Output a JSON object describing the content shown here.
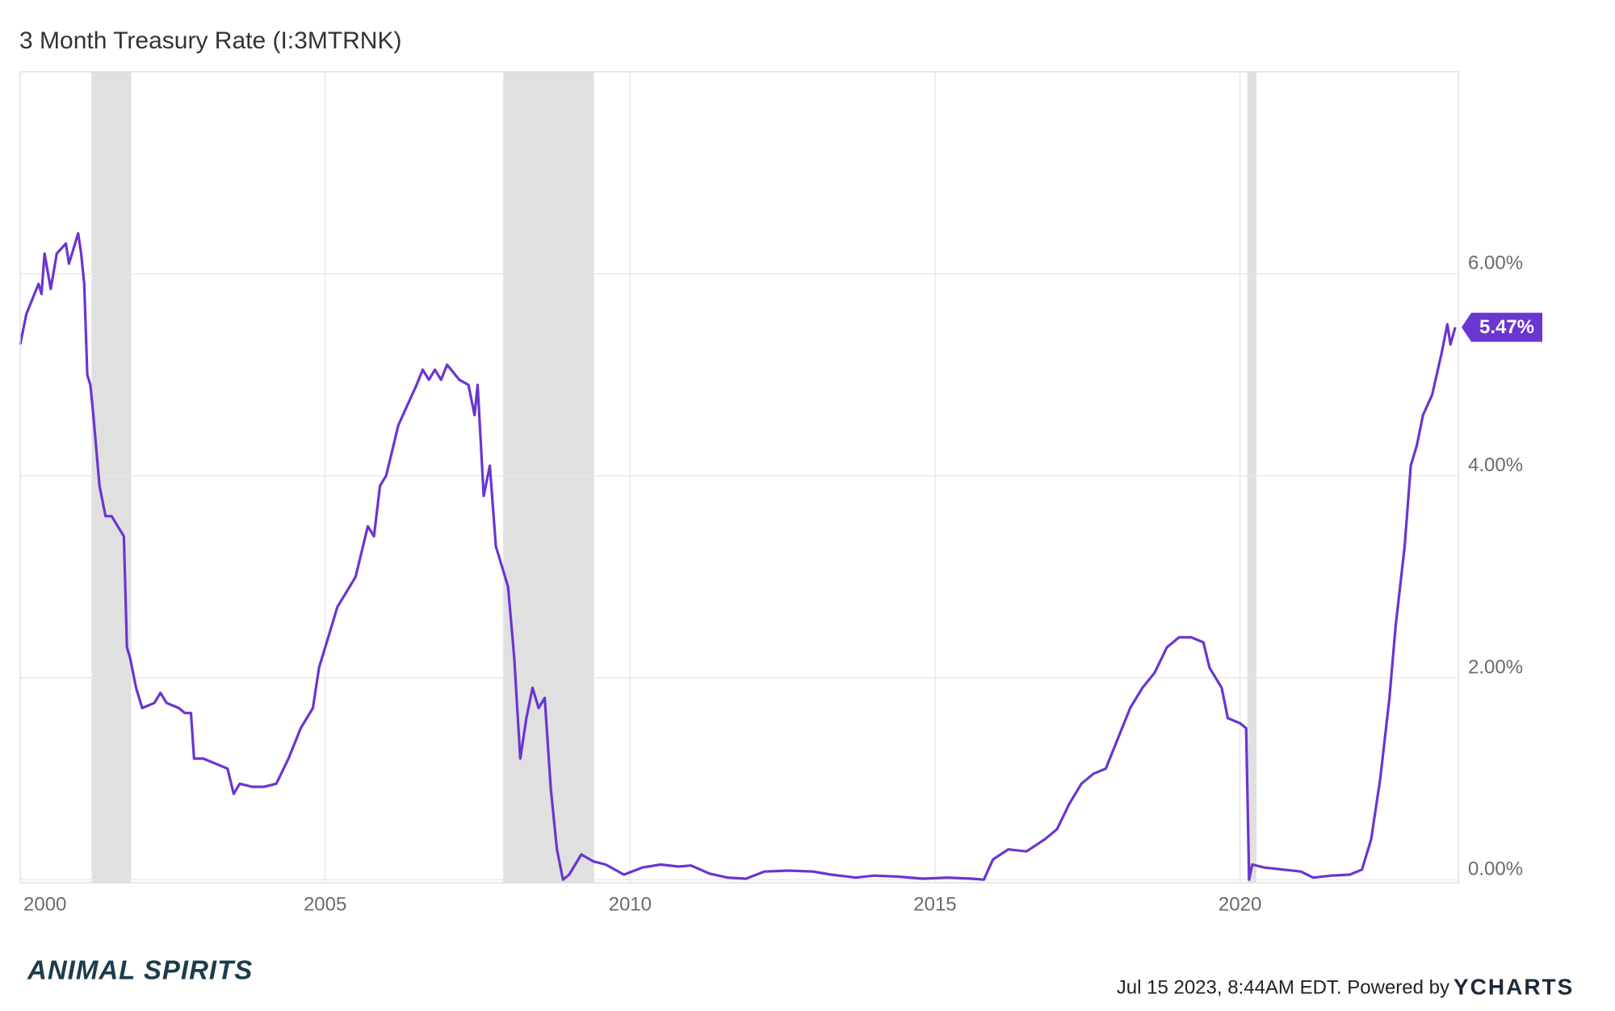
{
  "chart_data": {
    "type": "line",
    "title": "3 Month Treasury Rate (I:3MTRNK)",
    "x": [
      2000.0,
      2000.1,
      2000.3,
      2000.35,
      2000.4,
      2000.5,
      2000.6,
      2000.75,
      2000.8,
      2000.9,
      2000.95,
      2001.0,
      2001.05,
      2001.1,
      2001.15,
      2001.2,
      2001.3,
      2001.4,
      2001.5,
      2001.6,
      2001.7,
      2001.75,
      2001.8,
      2001.9,
      2002.0,
      2002.2,
      2002.3,
      2002.4,
      2002.6,
      2002.7,
      2002.8,
      2002.85,
      2003.0,
      2003.2,
      2003.4,
      2003.5,
      2003.6,
      2003.8,
      2004.0,
      2004.2,
      2004.4,
      2004.6,
      2004.8,
      2004.9,
      2005.0,
      2005.2,
      2005.4,
      2005.5,
      2005.7,
      2005.8,
      2005.9,
      2006.0,
      2006.2,
      2006.35,
      2006.5,
      2006.6,
      2006.7,
      2006.8,
      2006.9,
      2007.0,
      2007.2,
      2007.35,
      2007.45,
      2007.5,
      2007.6,
      2007.7,
      2007.8,
      2007.9,
      2008.0,
      2008.1,
      2008.2,
      2008.3,
      2008.4,
      2008.5,
      2008.6,
      2008.7,
      2008.8,
      2008.9,
      2009.0,
      2009.2,
      2009.4,
      2009.6,
      2009.9,
      2010.2,
      2010.5,
      2010.8,
      2011.0,
      2011.3,
      2011.6,
      2011.9,
      2012.2,
      2012.6,
      2013.0,
      2013.3,
      2013.7,
      2014.0,
      2014.4,
      2014.8,
      2015.2,
      2015.6,
      2015.8,
      2015.95,
      2016.2,
      2016.5,
      2016.8,
      2017.0,
      2017.2,
      2017.4,
      2017.6,
      2017.8,
      2018.0,
      2018.2,
      2018.4,
      2018.6,
      2018.8,
      2019.0,
      2019.2,
      2019.4,
      2019.5,
      2019.7,
      2019.8,
      2020.0,
      2020.1,
      2020.15,
      2020.2,
      2020.4,
      2020.7,
      2021.0,
      2021.2,
      2021.5,
      2021.8,
      2022.0,
      2022.15,
      2022.3,
      2022.45,
      2022.55,
      2022.7,
      2022.8,
      2022.9,
      2023.0,
      2023.15,
      2023.3,
      2023.4,
      2023.45,
      2023.53
    ],
    "series": [
      {
        "name": "3 Month Treasury Rate",
        "color": "#6a35d0",
        "values": [
          5.3,
          5.6,
          5.9,
          5.8,
          6.2,
          5.85,
          6.2,
          6.3,
          6.1,
          6.3,
          6.4,
          6.2,
          5.9,
          5.0,
          4.9,
          4.6,
          3.9,
          3.6,
          3.6,
          3.5,
          3.4,
          2.3,
          2.2,
          1.9,
          1.7,
          1.75,
          1.85,
          1.75,
          1.7,
          1.65,
          1.65,
          1.2,
          1.2,
          1.15,
          1.1,
          0.85,
          0.95,
          0.92,
          0.92,
          0.95,
          1.2,
          1.5,
          1.7,
          2.1,
          2.3,
          2.7,
          2.9,
          3.0,
          3.5,
          3.4,
          3.9,
          4.0,
          4.5,
          4.7,
          4.9,
          5.05,
          4.95,
          5.05,
          4.95,
          5.1,
          4.95,
          4.9,
          4.6,
          4.9,
          3.8,
          4.1,
          3.3,
          3.1,
          2.9,
          2.2,
          1.2,
          1.6,
          1.9,
          1.7,
          1.8,
          0.9,
          0.3,
          0.0,
          0.05,
          0.25,
          0.18,
          0.15,
          0.05,
          0.12,
          0.15,
          0.13,
          0.14,
          0.06,
          0.02,
          0.01,
          0.08,
          0.09,
          0.08,
          0.05,
          0.02,
          0.04,
          0.03,
          0.01,
          0.02,
          0.01,
          0.0,
          0.2,
          0.3,
          0.28,
          0.4,
          0.5,
          0.75,
          0.95,
          1.05,
          1.1,
          1.4,
          1.7,
          1.9,
          2.05,
          2.3,
          2.4,
          2.4,
          2.35,
          2.1,
          1.9,
          1.6,
          1.55,
          1.5,
          0.0,
          0.15,
          0.12,
          0.1,
          0.08,
          0.02,
          0.04,
          0.05,
          0.1,
          0.4,
          1.0,
          1.8,
          2.5,
          3.3,
          4.1,
          4.3,
          4.6,
          4.8,
          5.2,
          5.5,
          5.3,
          5.47
        ]
      }
    ],
    "end_label": {
      "value": 5.47,
      "label": "5.47%"
    },
    "recessions": [
      [
        2001.17,
        2001.82
      ],
      [
        2007.92,
        2009.41
      ],
      [
        2020.12,
        2020.27
      ]
    ],
    "recession_color": "#e0e0e0",
    "xlim": [
      2000.0,
      2023.58
    ],
    "xticks": [
      2000,
      2005,
      2010,
      2015,
      2020
    ],
    "ylim": [
      -0.03,
      8.0
    ],
    "yticks": [
      {
        "value": 0,
        "label": "0.00%"
      },
      {
        "value": 2,
        "label": "2.00%"
      },
      {
        "value": 4,
        "label": "4.00%"
      },
      {
        "value": 6,
        "label": "6.00%"
      }
    ],
    "grid": true,
    "footer": {
      "brand": "ANIMAL SPIRITS",
      "timestamp": "Jul 15 2023, 8:44AM EDT. Powered by",
      "logo": "YCHARTS"
    }
  }
}
